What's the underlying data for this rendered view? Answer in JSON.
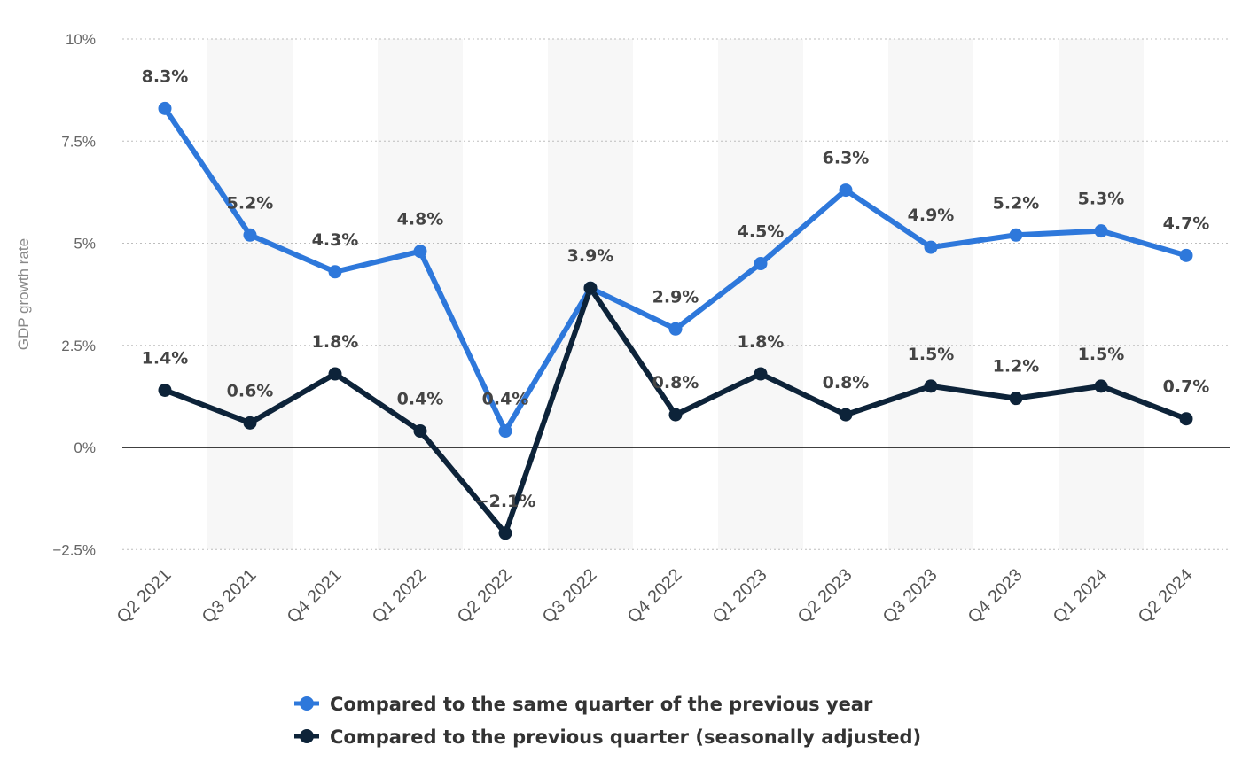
{
  "chart_data": {
    "type": "line",
    "title": "",
    "xlabel": "",
    "ylabel": "GDP growth rate",
    "ylim": [
      -2.5,
      10
    ],
    "yticks": [
      -2.5,
      0,
      2.5,
      5,
      7.5,
      10
    ],
    "ytick_labels": [
      "−2.5%",
      "0%",
      "2.5%",
      "5%",
      "7.5%",
      "10%"
    ],
    "grid": true,
    "legend_position": "bottom-center",
    "categories": [
      "Q2 2021",
      "Q3 2021",
      "Q4 2021",
      "Q1 2022",
      "Q2 2022",
      "Q3 2022",
      "Q4 2022",
      "Q1 2023",
      "Q2 2023",
      "Q3 2023",
      "Q4 2023",
      "Q1 2024",
      "Q2 2024"
    ],
    "series": [
      {
        "name": "Compared to the same quarter of the previous year",
        "color": "#2e78db",
        "values": [
          8.3,
          5.2,
          4.3,
          4.8,
          0.4,
          3.9,
          2.9,
          4.5,
          6.3,
          4.9,
          5.2,
          5.3,
          4.7
        ],
        "labels": [
          "8.3%",
          "5.2%",
          "4.3%",
          "4.8%",
          "0.4%",
          "3.9%",
          "2.9%",
          "4.5%",
          "6.3%",
          "4.9%",
          "5.2%",
          "5.3%",
          "4.7%"
        ]
      },
      {
        "name": "Compared to the previous quarter (seasonally adjusted)",
        "color": "#0d2339",
        "values": [
          1.4,
          0.6,
          1.8,
          0.4,
          -2.1,
          3.9,
          0.8,
          1.8,
          0.8,
          1.5,
          1.2,
          1.5,
          0.7
        ],
        "labels": [
          "1.4%",
          "0.6%",
          "1.8%",
          "0.4%",
          "−2.1%",
          "",
          "0.8%",
          "1.8%",
          "0.8%",
          "1.5%",
          "1.2%",
          "1.5%",
          "0.7%"
        ]
      }
    ]
  }
}
